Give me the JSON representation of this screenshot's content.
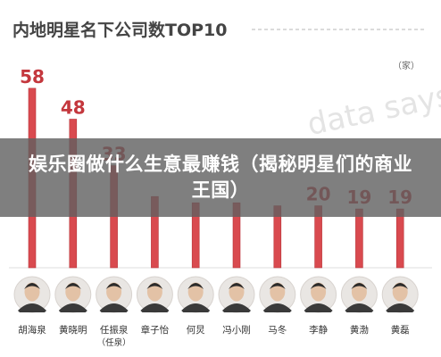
{
  "banner": {
    "headline": "娱乐圈做什么生意最赚钱（揭秘明星们的商业王国）"
  },
  "colors": {
    "bar": "#d94a4f",
    "bar_edge": "#b8353b",
    "value_text": "#c4373d",
    "title_text": "#444444",
    "dashed_line": "#cfcfcf",
    "watermark": "#e4e4e4"
  },
  "watermark": "data says",
  "chart_data": {
    "type": "bar",
    "title": "内地明星名下公司数TOP10",
    "unit": "（家）",
    "categories": [
      "胡海泉",
      "黄晓明",
      "任振泉",
      "章子怡",
      "何炅",
      "冯小刚",
      "马冬",
      "李静",
      "黄渤",
      "黄磊"
    ],
    "category_notes": [
      "",
      "",
      "（任泉）",
      "",
      "",
      "",
      "",
      "",
      "",
      ""
    ],
    "values": [
      58,
      48,
      33,
      23,
      21,
      21,
      20,
      20,
      19,
      19
    ],
    "value_labels": [
      "58",
      "48",
      "33",
      "",
      "",
      "",
      "",
      "20",
      "19",
      "19"
    ],
    "ylim": [
      0,
      62
    ],
    "xlabel": "",
    "ylabel": "",
    "grid": false,
    "legend": "none"
  }
}
